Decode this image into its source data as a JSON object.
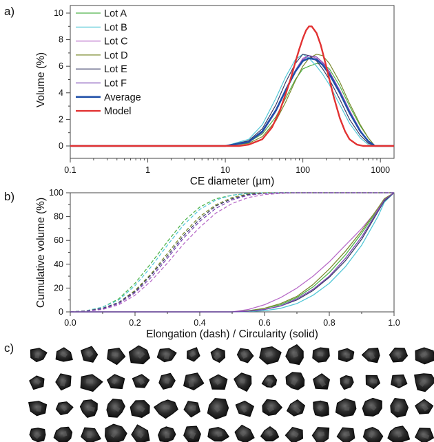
{
  "panels": {
    "a": "a)",
    "b": "b)",
    "c": "c)"
  },
  "colors": {
    "Lot A": "#4fb34a",
    "Lot B": "#52c7d6",
    "Lot C": "#b86bc8",
    "Lot D": "#7b8a2e",
    "Lot E": "#3a3c66",
    "Lot F": "#7a45b3",
    "Average": "#1f4fa8",
    "Model": "#e23232"
  },
  "chart_data": [
    {
      "id": "a",
      "type": "line",
      "xscale": "log",
      "xlabel": "CE diameter (µm)",
      "ylabel": "Volume (%)",
      "xlim": [
        0.1,
        1500
      ],
      "ylim": [
        0,
        10
      ],
      "xticks": [
        "0.1",
        "1",
        "10",
        "100",
        "1000"
      ],
      "yticks": [
        "0",
        "2",
        "4",
        "6",
        "8",
        "10"
      ],
      "legend_position": "top-left",
      "series": [
        {
          "name": "Lot A",
          "x": [
            0.1,
            5,
            10,
            20,
            30,
            45,
            60,
            80,
            100,
            120,
            150,
            180,
            220,
            300,
            400,
            550,
            700,
            850,
            1000,
            1500
          ],
          "y": [
            0,
            0,
            0,
            0.3,
            0.9,
            2.2,
            3.6,
            5.0,
            5.8,
            6.0,
            6.2,
            6.2,
            5.8,
            4.5,
            3.0,
            1.5,
            0.6,
            0,
            0,
            0
          ]
        },
        {
          "name": "Lot B",
          "x": [
            0.1,
            5,
            10,
            20,
            30,
            45,
            60,
            80,
            100,
            120,
            150,
            180,
            220,
            300,
            400,
            550,
            700,
            850,
            1000,
            1500
          ],
          "y": [
            0,
            0,
            0,
            0.5,
            1.6,
            3.6,
            5.2,
            6.5,
            6.9,
            6.6,
            6.0,
            5.4,
            4.6,
            3.1,
            1.7,
            0.6,
            0.1,
            0,
            0,
            0
          ]
        },
        {
          "name": "Lot C",
          "x": [
            0.1,
            5,
            10,
            20,
            30,
            45,
            60,
            80,
            100,
            120,
            150,
            180,
            220,
            300,
            400,
            550,
            700,
            850,
            1000,
            1500
          ],
          "y": [
            0,
            0,
            0,
            0.3,
            1.1,
            2.7,
            4.2,
            5.7,
            6.6,
            6.8,
            6.6,
            6.2,
            5.6,
            4.2,
            2.7,
            1.2,
            0.3,
            0,
            0,
            0
          ]
        },
        {
          "name": "Lot D",
          "x": [
            0.1,
            5,
            10,
            20,
            30,
            45,
            60,
            80,
            100,
            120,
            150,
            180,
            220,
            300,
            400,
            550,
            700,
            850,
            1000,
            1500
          ],
          "y": [
            0,
            0,
            0,
            0.2,
            0.7,
            1.9,
            3.3,
            4.9,
            6.0,
            6.6,
            6.9,
            6.8,
            6.2,
            4.8,
            3.2,
            1.6,
            0.6,
            0,
            0,
            0
          ]
        },
        {
          "name": "Lot E",
          "x": [
            0.1,
            5,
            10,
            20,
            30,
            45,
            60,
            80,
            100,
            120,
            150,
            180,
            220,
            300,
            400,
            550,
            700,
            850,
            1000,
            1500
          ],
          "y": [
            0,
            0,
            0,
            0.4,
            1.3,
            3.1,
            4.8,
            6.2,
            6.9,
            6.8,
            6.4,
            5.8,
            5.0,
            3.5,
            2.0,
            0.8,
            0.2,
            0,
            0,
            0
          ]
        },
        {
          "name": "Lot F",
          "x": [
            0.1,
            5,
            10,
            20,
            30,
            45,
            60,
            80,
            100,
            120,
            150,
            180,
            220,
            300,
            400,
            550,
            700,
            850,
            1000,
            1500
          ],
          "y": [
            0,
            0,
            0,
            0.3,
            1.0,
            2.6,
            4.1,
            5.6,
            6.5,
            6.8,
            6.7,
            6.3,
            5.6,
            4.1,
            2.6,
            1.1,
            0.3,
            0,
            0,
            0
          ]
        },
        {
          "name": "Average",
          "x": [
            0.1,
            5,
            10,
            20,
            30,
            45,
            60,
            80,
            100,
            120,
            150,
            180,
            220,
            300,
            400,
            550,
            700,
            850,
            1000,
            1500
          ],
          "y": [
            0,
            0,
            0,
            0.3,
            1.1,
            2.7,
            4.2,
            5.6,
            6.4,
            6.6,
            6.5,
            6.1,
            5.4,
            4.0,
            2.5,
            1.1,
            0.35,
            0,
            0,
            0
          ]
        },
        {
          "name": "Model",
          "x": [
            0.1,
            10,
            15,
            20,
            30,
            40,
            50,
            60,
            70,
            80,
            90,
            100,
            110,
            120,
            130,
            150,
            170,
            200,
            250,
            300,
            350,
            400,
            500,
            600,
            800,
            1500
          ],
          "y": [
            0,
            0,
            0,
            0.1,
            0.5,
            1.4,
            2.6,
            3.9,
            5.1,
            6.3,
            7.3,
            8.1,
            8.7,
            9.0,
            9.0,
            8.5,
            7.6,
            6.0,
            3.7,
            2.1,
            1.1,
            0.5,
            0.1,
            0,
            0,
            0
          ]
        }
      ]
    },
    {
      "id": "b",
      "type": "line",
      "xlabel": "Elongation (dash) / Circularity (solid)",
      "ylabel": "Cumulative volume (%)",
      "xlim": [
        0,
        1
      ],
      "ylim": [
        0,
        100
      ],
      "xticks": [
        "0.0",
        "0.2",
        "0.4",
        "0.6",
        "0.8",
        "1.0"
      ],
      "yticks": [
        "0",
        "20",
        "40",
        "60",
        "80",
        "100"
      ],
      "series_elongation": [
        {
          "name": "Lot A",
          "x": [
            0,
            0.05,
            0.1,
            0.15,
            0.2,
            0.25,
            0.3,
            0.35,
            0.4,
            0.45,
            0.5,
            0.55,
            0.6,
            0.65,
            0.7,
            1.0
          ],
          "y": [
            0,
            1,
            4,
            11,
            24,
            41,
            59,
            76,
            88,
            95,
            98,
            99.5,
            100,
            100,
            100,
            100
          ]
        },
        {
          "name": "Lot B",
          "x": [
            0,
            0.05,
            0.1,
            0.15,
            0.2,
            0.25,
            0.3,
            0.35,
            0.4,
            0.45,
            0.5,
            0.55,
            0.6,
            0.65,
            0.7,
            1.0
          ],
          "y": [
            0,
            1,
            4,
            10,
            22,
            38,
            56,
            73,
            86,
            94,
            98,
            99.5,
            100,
            100,
            100,
            100
          ]
        },
        {
          "name": "Lot C",
          "x": [
            0,
            0.05,
            0.1,
            0.15,
            0.2,
            0.25,
            0.3,
            0.35,
            0.4,
            0.45,
            0.5,
            0.55,
            0.6,
            0.65,
            0.7,
            1.0
          ],
          "y": [
            0,
            0.5,
            2,
            6,
            14,
            26,
            41,
            57,
            71,
            83,
            91,
            96,
            98.5,
            99.5,
            100,
            100
          ]
        },
        {
          "name": "Lot D",
          "x": [
            0,
            0.05,
            0.1,
            0.15,
            0.2,
            0.25,
            0.3,
            0.35,
            0.4,
            0.45,
            0.5,
            0.55,
            0.6,
            0.65,
            0.7,
            1.0
          ],
          "y": [
            0,
            0.8,
            3,
            8,
            18,
            32,
            49,
            66,
            80,
            90,
            96,
            99,
            100,
            100,
            100,
            100
          ]
        },
        {
          "name": "Lot E",
          "x": [
            0,
            0.05,
            0.1,
            0.15,
            0.2,
            0.25,
            0.3,
            0.35,
            0.4,
            0.45,
            0.5,
            0.55,
            0.6,
            0.65,
            0.7,
            1.0
          ],
          "y": [
            0,
            0.7,
            3,
            8,
            17,
            31,
            47,
            64,
            78,
            89,
            95,
            98.5,
            99.5,
            100,
            100,
            100
          ]
        },
        {
          "name": "Lot F",
          "x": [
            0,
            0.05,
            0.1,
            0.15,
            0.2,
            0.25,
            0.3,
            0.35,
            0.4,
            0.45,
            0.5,
            0.55,
            0.6,
            0.65,
            0.7,
            1.0
          ],
          "y": [
            0,
            0.6,
            2.5,
            7,
            16,
            29,
            45,
            62,
            76,
            87,
            94,
            98,
            99.5,
            100,
            100,
            100
          ]
        }
      ],
      "series_circularity": [
        {
          "name": "Lot A",
          "x": [
            0,
            0.5,
            0.55,
            0.6,
            0.65,
            0.7,
            0.75,
            0.8,
            0.85,
            0.9,
            0.95,
            0.97,
            1.0
          ],
          "y": [
            0,
            0,
            1,
            3,
            6,
            12,
            21,
            33,
            48,
            66,
            86,
            94,
            100
          ]
        },
        {
          "name": "Lot B",
          "x": [
            0,
            0.5,
            0.55,
            0.6,
            0.65,
            0.7,
            0.75,
            0.8,
            0.85,
            0.9,
            0.95,
            0.97,
            1.0
          ],
          "y": [
            0,
            0,
            0.3,
            1,
            3,
            7,
            14,
            24,
            38,
            56,
            80,
            92,
            100
          ]
        },
        {
          "name": "Lot C",
          "x": [
            0,
            0.5,
            0.55,
            0.6,
            0.65,
            0.7,
            0.75,
            0.8,
            0.85,
            0.9,
            0.95,
            0.97,
            1.0
          ],
          "y": [
            0,
            0,
            2,
            6,
            12,
            20,
            30,
            42,
            56,
            70,
            86,
            94,
            100
          ]
        },
        {
          "name": "Lot D",
          "x": [
            0,
            0.5,
            0.55,
            0.6,
            0.65,
            0.7,
            0.75,
            0.8,
            0.85,
            0.9,
            0.95,
            0.97,
            1.0
          ],
          "y": [
            0,
            0,
            0.8,
            3,
            7,
            13,
            23,
            36,
            51,
            68,
            87,
            95,
            100
          ]
        },
        {
          "name": "Lot E",
          "x": [
            0,
            0.5,
            0.55,
            0.6,
            0.65,
            0.7,
            0.75,
            0.8,
            0.85,
            0.9,
            0.95,
            0.97,
            1.0
          ],
          "y": [
            0,
            0,
            0.5,
            2,
            5,
            10,
            18,
            29,
            43,
            61,
            84,
            93,
            100
          ]
        },
        {
          "name": "Lot F",
          "x": [
            0,
            0.5,
            0.55,
            0.6,
            0.65,
            0.7,
            0.75,
            0.8,
            0.85,
            0.9,
            0.95,
            0.97,
            1.0
          ],
          "y": [
            0,
            0,
            0.6,
            2,
            5,
            11,
            19,
            30,
            45,
            63,
            85,
            94,
            100
          ]
        }
      ]
    }
  ],
  "particle_images": {
    "rows": 4,
    "columns": 16
  }
}
